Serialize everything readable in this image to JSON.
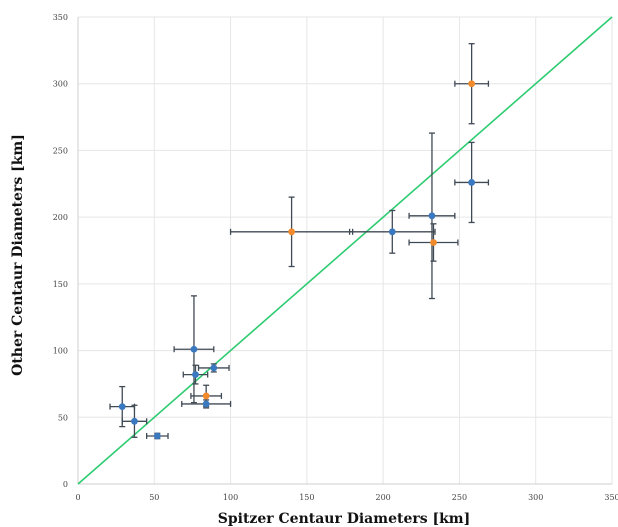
{
  "chart_data": {
    "type": "scatter",
    "xlabel": "Spitzer Centaur Diameters [km]",
    "ylabel": "Other Centaur Diameters [km]",
    "xlim": [
      0,
      350
    ],
    "ylim": [
      0,
      350
    ],
    "xticks": [
      0,
      50,
      100,
      150,
      200,
      250,
      300,
      350
    ],
    "yticks": [
      0,
      50,
      100,
      150,
      200,
      250,
      300,
      350
    ],
    "xtick_labels": [
      "0",
      "50",
      "100",
      "150",
      "200",
      "250",
      "300",
      "350"
    ],
    "ytick_labels": [
      "0",
      "50",
      "100",
      "150",
      "200",
      "250",
      "300",
      "350"
    ],
    "grid": true,
    "reference_line": {
      "x": [
        0,
        350
      ],
      "y": [
        0,
        350
      ],
      "color": "#2ecc71"
    },
    "series": [
      {
        "color": "#3a78c0",
        "points": [
          {
            "x": 29,
            "y": 58,
            "xerr": 8,
            "yerr": 15
          },
          {
            "x": 37,
            "y": 47,
            "xerr": 8,
            "yerr": 12
          },
          {
            "x": 52,
            "y": 36,
            "xerr": 7,
            "yerr": 2
          },
          {
            "x": 76,
            "y": 101,
            "xerr": 13,
            "yerr": 40
          },
          {
            "x": 77,
            "y": 82,
            "xerr": 8,
            "yerr": 7
          },
          {
            "x": 89,
            "y": 87,
            "xerr": 10,
            "yerr": 3
          },
          {
            "x": 84,
            "y": 60,
            "xerr": 16,
            "yerr": 3
          },
          {
            "x": 206,
            "y": 189,
            "xerr": 28,
            "yerr": 16
          },
          {
            "x": 232,
            "y": 201,
            "xerr": 15,
            "yerr": 62
          },
          {
            "x": 258,
            "y": 226,
            "xerr": 11,
            "yerr": 30
          }
        ]
      },
      {
        "color": "#f08a2c",
        "points": [
          {
            "x": 84,
            "y": 66,
            "xerr": 10,
            "yerr": 8
          },
          {
            "x": 140,
            "y": 189,
            "xerr": 40,
            "yerr": 26
          },
          {
            "x": 233,
            "y": 181,
            "xerr": 16,
            "yerr": 14
          },
          {
            "x": 258,
            "y": 300,
            "xerr": 11,
            "yerr": 30
          }
        ]
      }
    ]
  }
}
